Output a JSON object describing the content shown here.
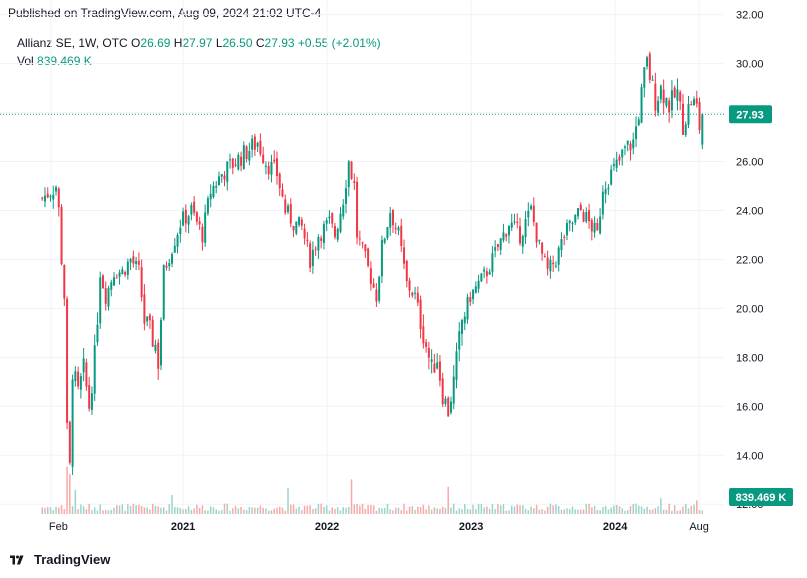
{
  "header": {
    "published": "Published on TradingView.com, Aug 09, 2024 21:02 UTC-4"
  },
  "legend": {
    "symbol": "Allianz SE, 1W, OTC",
    "open_label": "O",
    "open": "26.69",
    "high_label": "H",
    "high": "27.97",
    "low_label": "L",
    "low": "26.50",
    "close_label": "C",
    "close": "27.93",
    "change": "+0.55 (+2.01%)",
    "vol_label": "Vol",
    "vol": "839.469 K"
  },
  "footer": {
    "brand": "TradingView"
  },
  "colors": {
    "up": "#089981",
    "down": "#f23645",
    "up_volume": "#9cd4c9",
    "down_volume": "#f7a9a7",
    "grid": "#f0f3fa",
    "price_line": "#089981"
  },
  "chart_data": {
    "type": "candlestick",
    "y_axis": {
      "ylim": [
        11.6,
        32.6
      ],
      "ticks": [
        "32.00",
        "30.00",
        "28.00",
        "26.00",
        "24.00",
        "22.00",
        "20.00",
        "18.00",
        "16.00",
        "14.00",
        "12.00"
      ]
    },
    "x_axis": {
      "ticks": [
        {
          "label": "Feb",
          "date": "2020-02-01",
          "bold": false
        },
        {
          "label": "2021",
          "date": "2021-01-01",
          "bold": true
        },
        {
          "label": "2022",
          "date": "2022-01-01",
          "bold": true
        },
        {
          "label": "2023",
          "date": "2023-01-01",
          "bold": true
        },
        {
          "label": "2024",
          "date": "2024-01-01",
          "bold": true
        },
        {
          "label": "Aug",
          "date": "2024-08-01",
          "bold": false
        }
      ]
    },
    "last_price": "27.93",
    "last_volume": "839.469 K",
    "price_path": [
      [
        "2020-01-10",
        24.5
      ],
      [
        "2020-02-14",
        25.0
      ],
      [
        "2020-02-21",
        24.0
      ],
      [
        "2020-02-28",
        22.0
      ],
      [
        "2020-03-06",
        20.5
      ],
      [
        "2020-03-13",
        15.0
      ],
      [
        "2020-03-20",
        13.5
      ],
      [
        "2020-03-27",
        17.5
      ],
      [
        "2020-04-10",
        16.5
      ],
      [
        "2020-04-24",
        17.5
      ],
      [
        "2020-05-08",
        16.0
      ],
      [
        "2020-05-22",
        18.0
      ],
      [
        "2020-06-05",
        21.5
      ],
      [
        "2020-06-19",
        20.5
      ],
      [
        "2020-07-10",
        21.5
      ],
      [
        "2020-07-31",
        21.5
      ],
      [
        "2020-08-21",
        22.0
      ],
      [
        "2020-09-11",
        21.5
      ],
      [
        "2020-09-25",
        19.5
      ],
      [
        "2020-10-23",
        18.5
      ],
      [
        "2020-10-30",
        17.8
      ],
      [
        "2020-11-13",
        21.5
      ],
      [
        "2020-12-04",
        22.5
      ],
      [
        "2020-12-25",
        23.5
      ],
      [
        "2021-01-22",
        24.0
      ],
      [
        "2021-02-19",
        23.0
      ],
      [
        "2021-03-12",
        24.8
      ],
      [
        "2021-04-09",
        25.5
      ],
      [
        "2021-05-14",
        26.0
      ],
      [
        "2021-06-18",
        26.5
      ],
      [
        "2021-07-09",
        26.8
      ],
      [
        "2021-07-30",
        26.0
      ],
      [
        "2021-08-27",
        25.5
      ],
      [
        "2021-09-17",
        24.0
      ],
      [
        "2021-10-08",
        23.5
      ],
      [
        "2021-10-29",
        23.3
      ],
      [
        "2021-11-19",
        22.0
      ],
      [
        "2021-12-10",
        23.0
      ],
      [
        "2022-01-07",
        23.5
      ],
      [
        "2022-01-21",
        23.0
      ],
      [
        "2022-02-11",
        24.5
      ],
      [
        "2022-02-25",
        26.0
      ],
      [
        "2022-03-11",
        25.0
      ],
      [
        "2022-03-18",
        23.0
      ],
      [
        "2022-04-08",
        22.0
      ],
      [
        "2022-05-06",
        20.5
      ],
      [
        "2022-05-20",
        22.5
      ],
      [
        "2022-06-10",
        24.0
      ],
      [
        "2022-07-01",
        23.0
      ],
      [
        "2022-07-22",
        21.0
      ],
      [
        "2022-08-12",
        20.5
      ],
      [
        "2022-09-02",
        19.0
      ],
      [
        "2022-09-23",
        17.5
      ],
      [
        "2022-10-07",
        18.0
      ],
      [
        "2022-10-21",
        16.5
      ],
      [
        "2022-11-04",
        15.8
      ],
      [
        "2022-11-18",
        17.0
      ],
      [
        "2022-12-09",
        19.5
      ],
      [
        "2022-12-30",
        20.5
      ],
      [
        "2023-01-20",
        21.0
      ],
      [
        "2023-02-10",
        21.5
      ],
      [
        "2023-03-10",
        22.5
      ],
      [
        "2023-04-07",
        23.5
      ],
      [
        "2023-05-05",
        23.0
      ],
      [
        "2023-06-02",
        24.0
      ],
      [
        "2023-06-23",
        22.5
      ],
      [
        "2023-07-14",
        21.5
      ],
      [
        "2023-08-04",
        22.0
      ],
      [
        "2023-08-25",
        23.0
      ],
      [
        "2023-09-15",
        23.5
      ],
      [
        "2023-10-06",
        24.0
      ],
      [
        "2023-10-27",
        23.5
      ],
      [
        "2023-11-17",
        23.0
      ],
      [
        "2023-12-01",
        25.0
      ],
      [
        "2023-12-22",
        25.5
      ],
      [
        "2024-01-12",
        26.0
      ],
      [
        "2024-01-26",
        26.5
      ],
      [
        "2024-02-16",
        26.8
      ],
      [
        "2024-03-01",
        28.0
      ],
      [
        "2024-03-15",
        29.5
      ],
      [
        "2024-03-22",
        30.0
      ],
      [
        "2024-04-12",
        28.5
      ],
      [
        "2024-04-26",
        29.0
      ],
      [
        "2024-05-17",
        28.3
      ],
      [
        "2024-06-07",
        28.8
      ],
      [
        "2024-06-21",
        27.5
      ],
      [
        "2024-07-12",
        28.5
      ],
      [
        "2024-07-26",
        28.2
      ],
      [
        "2024-08-02",
        27.4
      ],
      [
        "2024-08-09",
        27.93
      ]
    ],
    "volume_spikes": [
      [
        "2020-03-13",
        4.5
      ],
      [
        "2020-03-20",
        3.8
      ],
      [
        "2020-04-03",
        2.3
      ],
      [
        "2020-12-04",
        1.8
      ],
      [
        "2021-09-24",
        2.5
      ],
      [
        "2022-03-04",
        3.3
      ],
      [
        "2022-11-04",
        2.6
      ],
      [
        "2024-04-26",
        1.5
      ],
      [
        "2024-07-26",
        1.3
      ]
    ]
  }
}
